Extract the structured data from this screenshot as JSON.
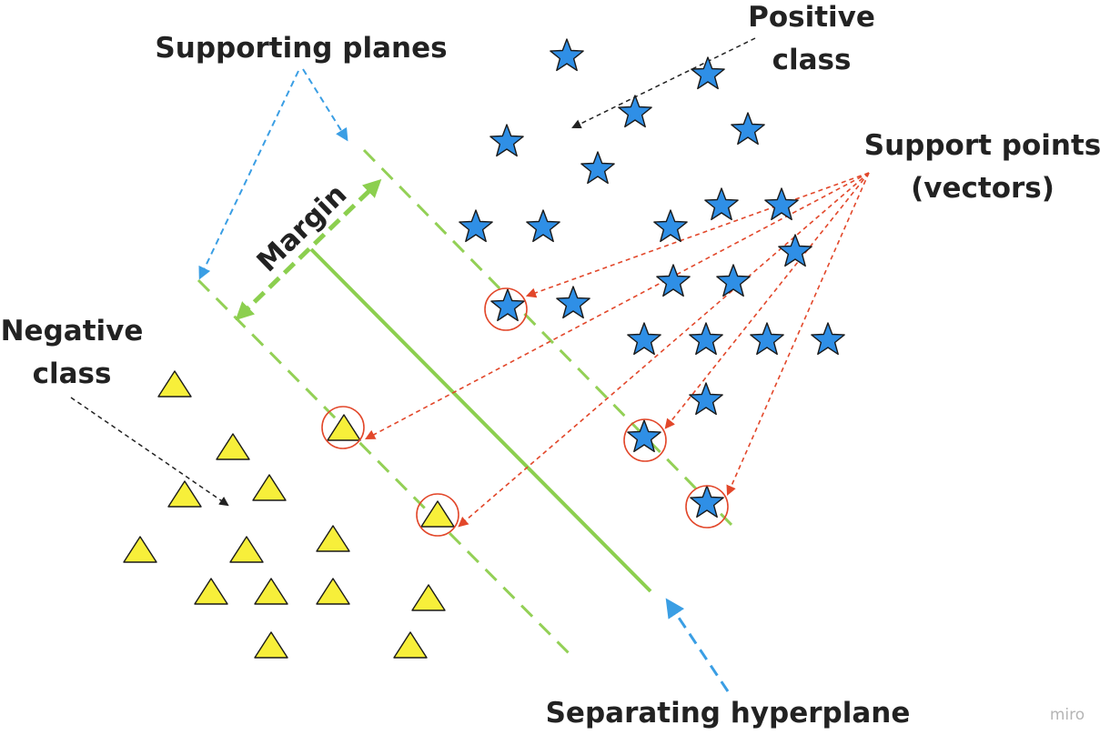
{
  "labels": {
    "supporting_planes": "Supporting planes",
    "positive_line1": "Positive",
    "positive_line2": "class",
    "support_line1": "Support points",
    "support_line2": "(vectors)",
    "negative_line1": "Negative",
    "negative_line2": "class",
    "margin": "Margin",
    "separating": "Separating hyperplane",
    "watermark": "miro"
  },
  "colors": {
    "star_fill": "#2f8fe6",
    "triangle_fill": "#f7ef3a",
    "outline": "#1a1a1a",
    "hyperplane_green": "#8ccf4f",
    "plane_green": "#93d056",
    "arrow_blue": "#3a9ee4",
    "arrow_red": "#e2472a",
    "arrow_black": "#222222",
    "circle_red": "#e2472a"
  },
  "icons": {
    "positive_point": "star-icon",
    "negative_point": "triangle-icon",
    "support_marker": "circle-highlight"
  }
}
